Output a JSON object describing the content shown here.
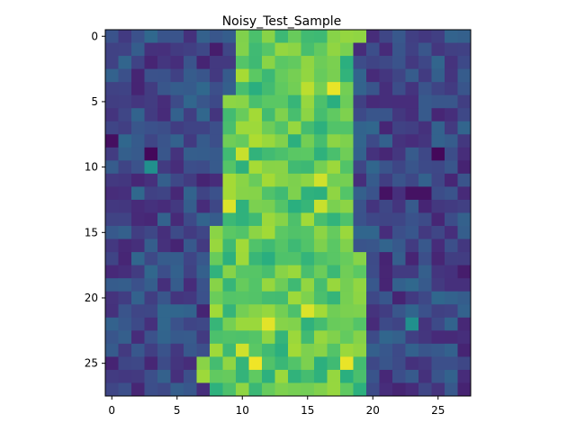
{
  "chart_data": {
    "type": "heatmap",
    "title": "Noisy_Test_Sample",
    "colormap": "viridis",
    "value_range": [
      0,
      1
    ],
    "shape": [
      28,
      28
    ],
    "xticks": [
      0,
      5,
      10,
      15,
      20,
      25
    ],
    "yticks": [
      0,
      5,
      10,
      15,
      20,
      25
    ],
    "xlim": [
      -0.5,
      27.5
    ],
    "ylim": [
      27.5,
      -0.5
    ],
    "grid": false,
    "signal_rows": [
      {
        "row": 0,
        "start": 10,
        "end": 19
      },
      {
        "row": 1,
        "start": 10,
        "end": 18
      },
      {
        "row": 2,
        "start": 10,
        "end": 18
      },
      {
        "row": 3,
        "start": 10,
        "end": 18
      },
      {
        "row": 4,
        "start": 10,
        "end": 18
      },
      {
        "row": 5,
        "start": 9,
        "end": 18
      },
      {
        "row": 6,
        "start": 9,
        "end": 18
      },
      {
        "row": 7,
        "start": 9,
        "end": 18
      },
      {
        "row": 8,
        "start": 9,
        "end": 18
      },
      {
        "row": 9,
        "start": 9,
        "end": 18
      },
      {
        "row": 10,
        "start": 9,
        "end": 18
      },
      {
        "row": 11,
        "start": 9,
        "end": 18
      },
      {
        "row": 12,
        "start": 9,
        "end": 18
      },
      {
        "row": 13,
        "start": 9,
        "end": 18
      },
      {
        "row": 14,
        "start": 9,
        "end": 18
      },
      {
        "row": 15,
        "start": 8,
        "end": 18
      },
      {
        "row": 16,
        "start": 8,
        "end": 18
      },
      {
        "row": 17,
        "start": 8,
        "end": 19
      },
      {
        "row": 18,
        "start": 8,
        "end": 19
      },
      {
        "row": 19,
        "start": 8,
        "end": 19
      },
      {
        "row": 20,
        "start": 8,
        "end": 19
      },
      {
        "row": 21,
        "start": 8,
        "end": 19
      },
      {
        "row": 22,
        "start": 8,
        "end": 19
      },
      {
        "row": 23,
        "start": 8,
        "end": 19
      },
      {
        "row": 24,
        "start": 8,
        "end": 19
      },
      {
        "row": 25,
        "start": 7,
        "end": 19
      },
      {
        "row": 26,
        "start": 7,
        "end": 19
      },
      {
        "row": 27,
        "start": 8,
        "end": 19
      }
    ],
    "signal_level": 0.75,
    "background_level": 0.22,
    "noise_amplitude": 0.12,
    "highlights": [
      {
        "row": 4,
        "col": 17,
        "value": 0.97
      },
      {
        "row": 4,
        "col": 15,
        "value": 0.9
      },
      {
        "row": 8,
        "col": 11,
        "value": 0.88
      },
      {
        "row": 9,
        "col": 10,
        "value": 0.92
      },
      {
        "row": 11,
        "col": 16,
        "value": 0.93
      },
      {
        "row": 13,
        "col": 9,
        "value": 0.95
      },
      {
        "row": 13,
        "col": 16,
        "value": 0.92
      },
      {
        "row": 22,
        "col": 12,
        "value": 0.96
      },
      {
        "row": 21,
        "col": 15,
        "value": 0.95
      },
      {
        "row": 25,
        "col": 11,
        "value": 0.98
      },
      {
        "row": 25,
        "col": 18,
        "value": 0.97
      },
      {
        "row": 24,
        "col": 10,
        "value": 0.93
      },
      {
        "row": 8,
        "col": 0,
        "value": 0.04
      },
      {
        "row": 9,
        "col": 3,
        "value": 0.02
      },
      {
        "row": 10,
        "col": 3,
        "value": 0.5
      },
      {
        "row": 12,
        "col": 21,
        "value": 0.05
      },
      {
        "row": 12,
        "col": 23,
        "value": 0.05
      },
      {
        "row": 12,
        "col": 24,
        "value": 0.05
      },
      {
        "row": 9,
        "col": 25,
        "value": 0.02
      },
      {
        "row": 10,
        "col": 27,
        "value": 0.1
      },
      {
        "row": 18,
        "col": 27,
        "value": 0.08
      },
      {
        "row": 22,
        "col": 23,
        "value": 0.5
      },
      {
        "row": 1,
        "col": 8,
        "value": 0.08
      }
    ]
  }
}
